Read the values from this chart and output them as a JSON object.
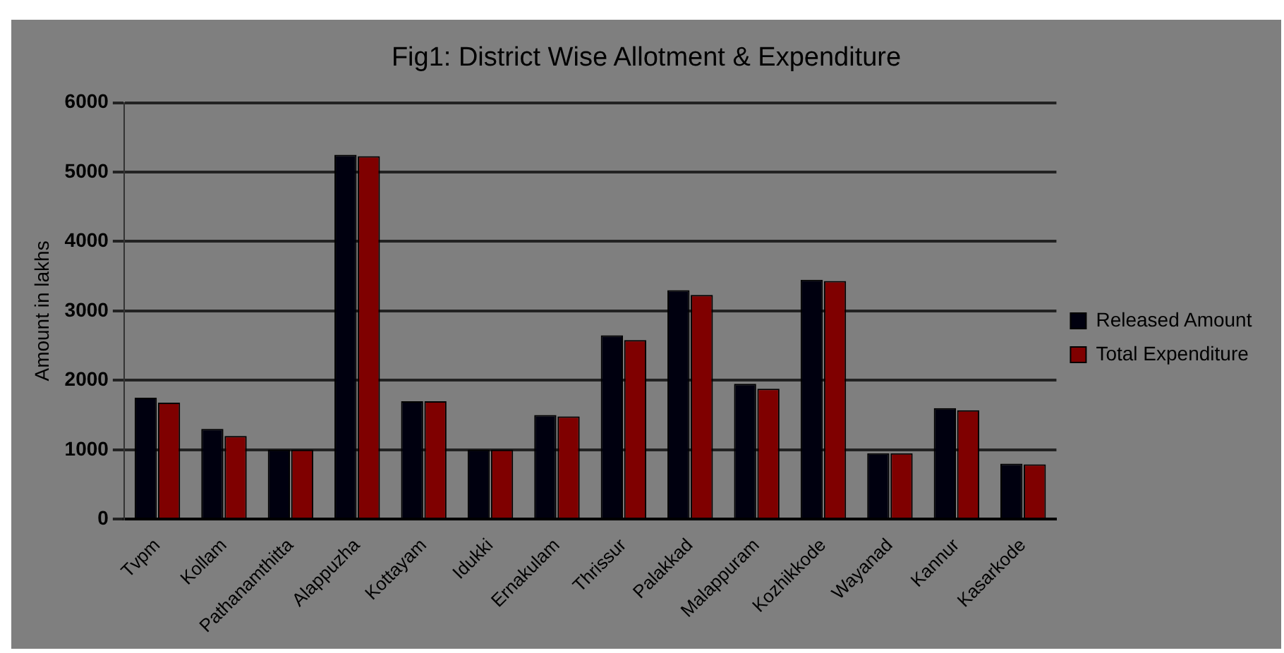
{
  "chart_data": {
    "type": "bar",
    "title": "Fig1: District Wise Allotment & Expenditure",
    "ylabel": "Amount in lakhs",
    "categories": [
      "Tvpm",
      "Kollam",
      "Pathanamthitta",
      "Alappuzha",
      "Kottayam",
      "Idukki",
      "Ernakulam",
      "Thrissur",
      "Palakkad",
      "Malappuram",
      "Kozhikkode",
      "Wayanad",
      "Kannur",
      "Kasarkode"
    ],
    "series": [
      {
        "name": "Released Amount",
        "color": "#00000f",
        "values": [
          1750,
          1300,
          1000,
          5250,
          1700,
          1000,
          1500,
          2650,
          3300,
          1950,
          3450,
          950,
          1600,
          800
        ]
      },
      {
        "name": "Total Expenditure",
        "color": "#7f0000",
        "values": [
          1680,
          1200,
          1000,
          5230,
          1700,
          1000,
          1480,
          2580,
          3230,
          1880,
          3430,
          950,
          1570,
          790
        ]
      }
    ],
    "ylim": [
      0,
      6000
    ],
    "yticks": [
      0,
      1000,
      2000,
      3000,
      4000,
      5000,
      6000
    ],
    "grid": "y",
    "legend": "right"
  }
}
